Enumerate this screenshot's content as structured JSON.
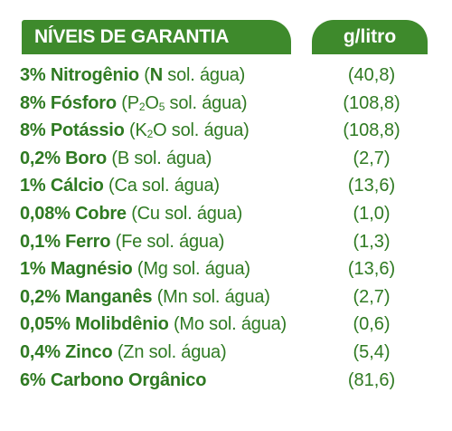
{
  "header": {
    "title": "NÍVEIS DE GARANTIA",
    "unit": "g/litro"
  },
  "rows": [
    {
      "pct": "3% Nitrogênio",
      "formula_prefix": "(",
      "formula_bold": "N",
      "formula_rest": " sol. água)",
      "value": "(40,8)"
    },
    {
      "pct": "8% Fósforo",
      "formula_prefix": "(",
      "formula_main": "P",
      "formula_sub": "2",
      "formula_main2": "O",
      "formula_sub2": "5",
      "formula_rest": " sol. água)",
      "value": "(108,8)"
    },
    {
      "pct": "8% Potássio",
      "formula_prefix": "(",
      "formula_main": "K",
      "formula_sub": "2",
      "formula_main2": "O",
      "formula_rest": " sol. água)",
      "value": "(108,8)"
    },
    {
      "pct": "0,2% Boro",
      "formula": "(B sol. água)",
      "value": "(2,7)"
    },
    {
      "pct": "1% Cálcio",
      "formula": "(Ca sol. água)",
      "value": "(13,6)"
    },
    {
      "pct": "0,08% Cobre",
      "formula": "(Cu sol. água)",
      "value": "(1,0)"
    },
    {
      "pct": "0,1% Ferro",
      "formula": "(Fe sol. água)",
      "value": "(1,3)"
    },
    {
      "pct": "1% Magnésio",
      "formula": "(Mg sol. água)",
      "value": "(13,6)"
    },
    {
      "pct": "0,2% Manganês",
      "formula": "(Mn sol. água)",
      "value": "(2,7)"
    },
    {
      "pct": "0,05% Molibdênio",
      "formula": "(Mo sol. água)",
      "value": "(0,6)"
    },
    {
      "pct": "0,4% Zinco",
      "formula": "(Zn sol. água)",
      "value": "(5,4)"
    },
    {
      "pct": "6% Carbono Orgânico",
      "formula": "",
      "value": "(81,6)"
    }
  ],
  "colors": {
    "header_bg": "#3e8a2c",
    "text": "#2f7a22"
  }
}
